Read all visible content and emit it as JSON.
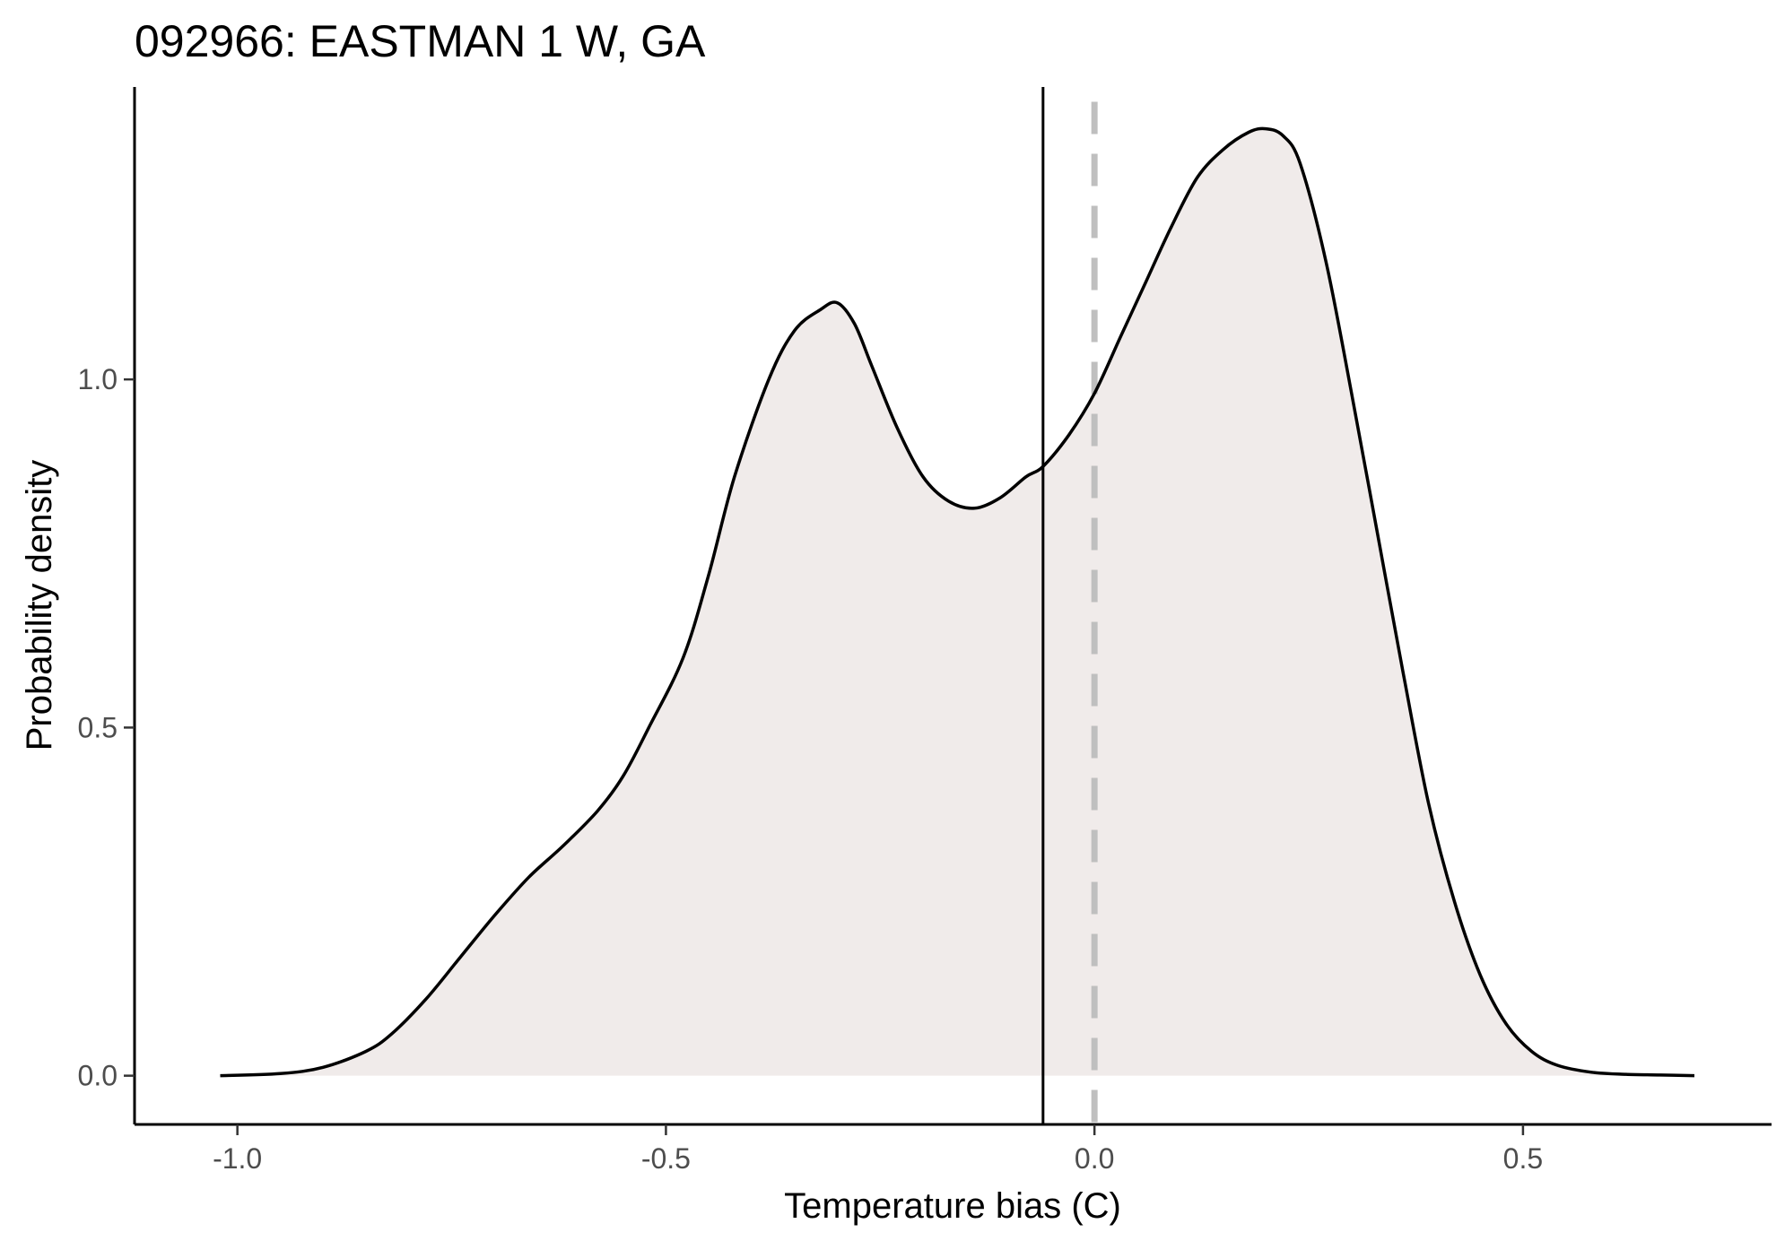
{
  "chart_data": {
    "type": "area",
    "title": "092966: EASTMAN 1 W, GA",
    "xlabel": "Temperature bias (C)",
    "ylabel": "Probability density",
    "xlim": [
      -1.12,
      0.79
    ],
    "ylim": [
      -0.07,
      1.42
    ],
    "x_ticks": [
      -1.0,
      -0.5,
      0.0,
      0.5
    ],
    "x_tick_labels": [
      "-1.0",
      "-0.5",
      "0.0",
      "0.5"
    ],
    "y_ticks": [
      0.0,
      0.5,
      1.0
    ],
    "y_tick_labels": [
      "0.0",
      "0.5",
      "1.0"
    ],
    "grid": false,
    "legend": "none",
    "fill_color": "#f0ebea",
    "line_color": "#000000",
    "reference_lines": [
      {
        "kind": "mean",
        "x": -0.06,
        "style": "solid",
        "color": "#000000"
      },
      {
        "kind": "zero",
        "x": 0.0,
        "style": "dashed",
        "color": "#bfbfbf"
      }
    ],
    "series": [
      {
        "x": [
          -1.02,
          -0.95,
          -0.9,
          -0.85,
          -0.82,
          -0.78,
          -0.74,
          -0.7,
          -0.66,
          -0.62,
          -0.58,
          -0.55,
          -0.52,
          -0.48,
          -0.45,
          -0.42,
          -0.38,
          -0.35,
          -0.32,
          -0.3,
          -0.28,
          -0.26,
          -0.23,
          -0.2,
          -0.17,
          -0.14,
          -0.11,
          -0.08,
          -0.06,
          -0.03,
          0.0,
          0.03,
          0.06,
          0.09,
          0.12,
          0.15,
          0.18,
          0.2,
          0.22,
          0.24,
          0.27,
          0.3,
          0.33,
          0.36,
          0.39,
          0.42,
          0.45,
          0.48,
          0.51,
          0.54,
          0.58,
          0.62,
          0.66,
          0.7
        ],
        "y": [
          0.0,
          0.003,
          0.012,
          0.035,
          0.06,
          0.11,
          0.17,
          0.23,
          0.285,
          0.33,
          0.38,
          0.43,
          0.5,
          0.6,
          0.72,
          0.86,
          1.0,
          1.07,
          1.1,
          1.11,
          1.08,
          1.02,
          0.93,
          0.86,
          0.825,
          0.815,
          0.83,
          0.86,
          0.875,
          0.92,
          0.98,
          1.06,
          1.14,
          1.22,
          1.29,
          1.33,
          1.355,
          1.36,
          1.35,
          1.31,
          1.17,
          0.98,
          0.78,
          0.58,
          0.39,
          0.25,
          0.145,
          0.075,
          0.035,
          0.015,
          0.005,
          0.002,
          0.001,
          0.0
        ]
      }
    ]
  }
}
